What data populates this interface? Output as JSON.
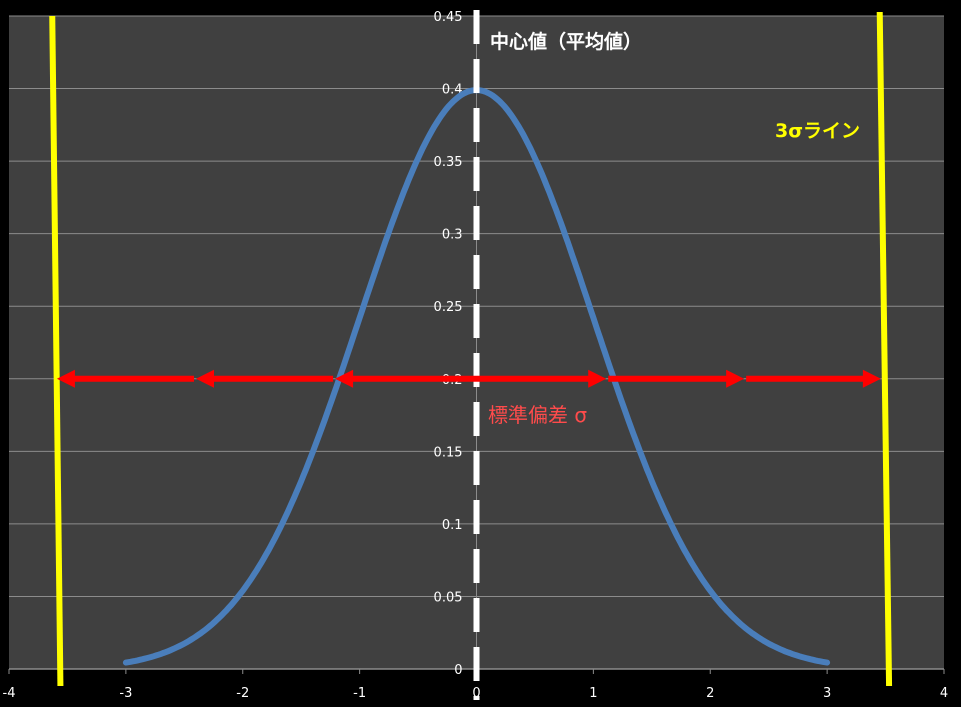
{
  "chart_data": {
    "type": "line",
    "title": "",
    "xlabel": "",
    "ylabel": "",
    "xlim": [
      -4,
      4
    ],
    "ylim": [
      0,
      0.45
    ],
    "x_ticks": [
      "-4",
      "-3",
      "-2",
      "-1",
      "0",
      "1",
      "2",
      "3",
      "4"
    ],
    "y_ticks": [
      "0",
      "0.05",
      "0.1",
      "0.15",
      "0.2",
      "0.25",
      "0.3",
      "0.35",
      "0.4",
      "0.45"
    ],
    "grid": "horizontal",
    "series": [
      {
        "type": "normal-pdf",
        "mean": 0,
        "sd": 1,
        "x_range": [
          -3,
          3
        ],
        "color": "#4a7ebb"
      }
    ],
    "annotations": {
      "mean_line": {
        "label": "中心値（平均値）",
        "x": 0,
        "color": "#ffffff",
        "style": "dashed"
      },
      "three_sigma_lines": {
        "label": "3σライン",
        "color": "#ffff00",
        "left": {
          "x_top": -3.63,
          "x_bottom": -3.56
        },
        "right": {
          "x_top": 3.45,
          "x_bottom": 3.53
        }
      },
      "sigma_arrows": {
        "label": "標準偏差 σ",
        "y": 0.2,
        "color": "#ff0000",
        "label_color": "#ff4b4b",
        "segments": [
          [
            -3.59,
            -2.4,
            "left"
          ],
          [
            -2.4,
            -1.21,
            "left"
          ],
          [
            -1.21,
            1.11,
            "both"
          ],
          [
            1.11,
            2.29,
            "right"
          ],
          [
            2.29,
            3.46,
            "right"
          ]
        ]
      }
    },
    "colors": {
      "plot_background": "#404040",
      "page_background": "#000000",
      "gridline": "#8c8c8c"
    }
  }
}
